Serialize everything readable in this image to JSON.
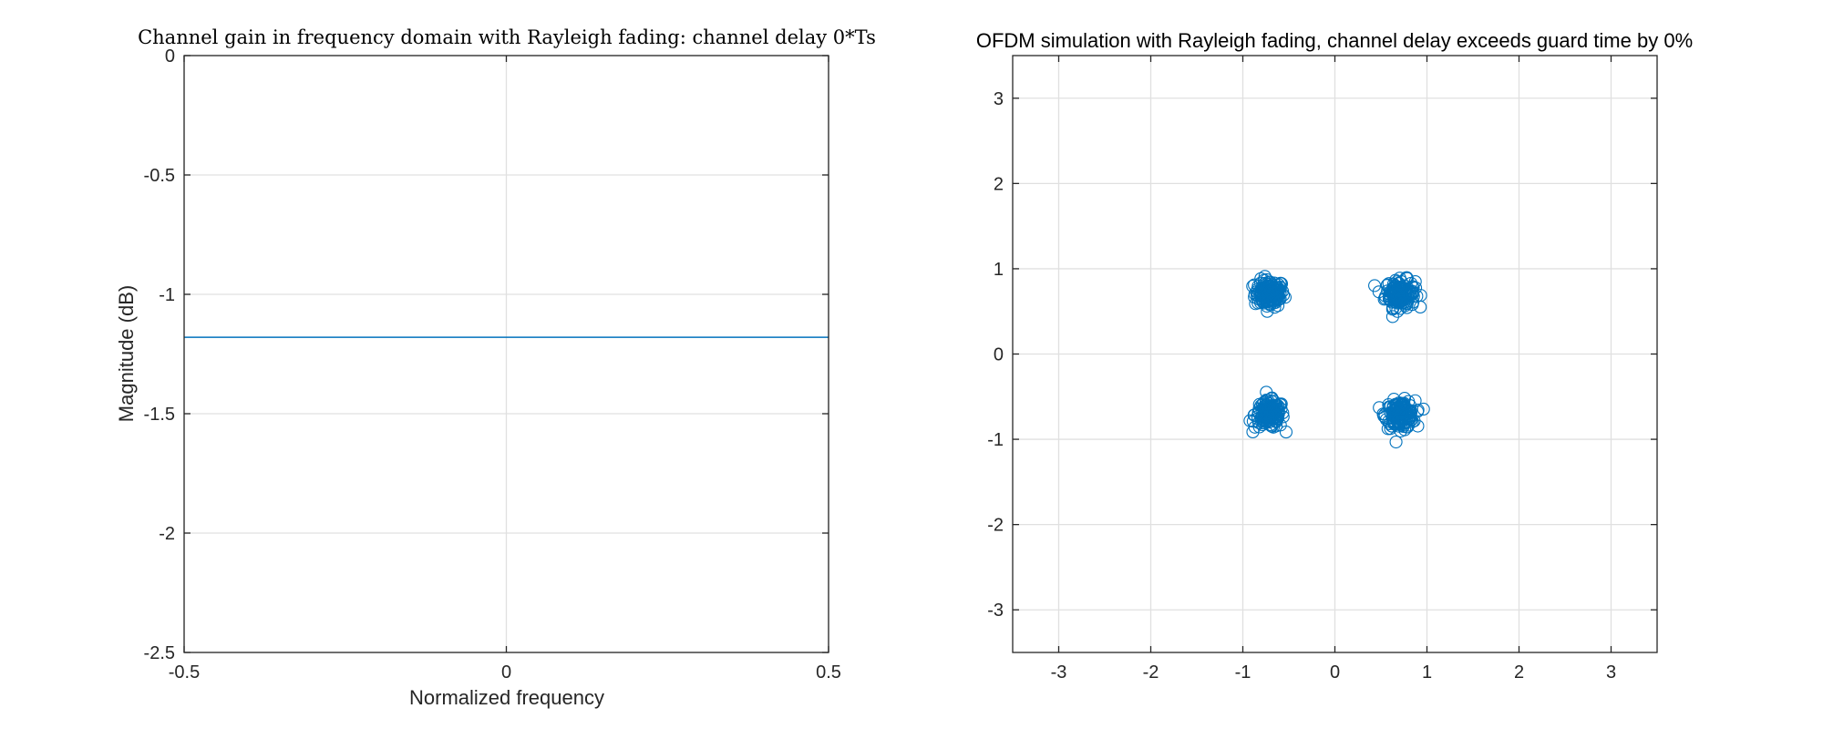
{
  "colors": {
    "series": "#0072BD",
    "grid": "#e0e0e0",
    "axis": "#262626"
  },
  "chart_data": [
    {
      "type": "line",
      "title": "Channel gain in frequency domain with Rayleigh fading: channel delay 0*Ts",
      "xlabel": "Normalized frequency",
      "ylabel": "Magnitude (dB)",
      "xlim": [
        -0.5,
        0.5
      ],
      "ylim": [
        -2.5,
        0
      ],
      "xticks": [
        -0.5,
        0,
        0.5
      ],
      "xtick_labels": [
        "-0.5",
        "0",
        "0.5"
      ],
      "yticks": [
        -2.5,
        -2,
        -1.5,
        -1,
        -0.5,
        0
      ],
      "ytick_labels": [
        "-2.5",
        "-2",
        "-1.5",
        "-1",
        "-0.5",
        "0"
      ],
      "grid": true,
      "series": [
        {
          "x": [
            -0.5,
            0.5
          ],
          "y": [
            -1.18,
            -1.18
          ]
        }
      ]
    },
    {
      "type": "scatter",
      "title": "OFDM simulation with Rayleigh fading, channel delay exceeds guard time by 0%",
      "xlabel": "",
      "ylabel": "",
      "xlim": [
        -3.5,
        3.5
      ],
      "ylim": [
        -3.5,
        3.5
      ],
      "xticks": [
        -3,
        -2,
        -1,
        0,
        1,
        2,
        3
      ],
      "xtick_labels": [
        "-3",
        "-2",
        "-1",
        "0",
        "1",
        "2",
        "3"
      ],
      "yticks": [
        -3,
        -2,
        -1,
        0,
        1,
        2,
        3
      ],
      "ytick_labels": [
        "-3",
        "-2",
        "-1",
        "0",
        "1",
        "2",
        "3"
      ],
      "grid": true,
      "marker": "open-circle",
      "clusters": [
        {
          "center": [
            -0.71,
            0.71
          ],
          "points_per_cluster": 150,
          "approx_spread": 0.08
        },
        {
          "center": [
            0.71,
            0.71
          ],
          "points_per_cluster": 150,
          "approx_spread": 0.08
        },
        {
          "center": [
            -0.71,
            -0.71
          ],
          "points_per_cluster": 150,
          "approx_spread": 0.08
        },
        {
          "center": [
            0.71,
            -0.71
          ],
          "points_per_cluster": 150,
          "approx_spread": 0.08
        }
      ]
    }
  ]
}
